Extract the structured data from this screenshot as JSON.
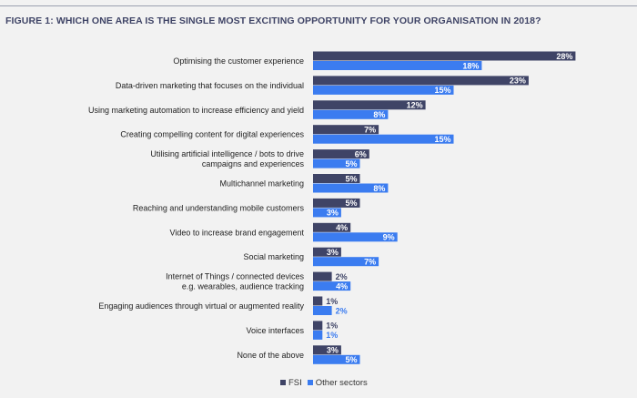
{
  "chart_data": {
    "type": "bar",
    "orientation": "horizontal",
    "title": "FIGURE 1: WHICH ONE AREA IS THE SINGLE MOST EXCITING OPPORTUNITY FOR YOUR ORGANISATION IN 2018?",
    "categories": [
      [
        "Optimising the customer experience"
      ],
      [
        "Data-driven marketing that focuses on the individual"
      ],
      [
        "Using marketing automation to increase efficiency and yield"
      ],
      [
        "Creating compelling content for digital experiences"
      ],
      [
        "Utilising artificial intelligence / bots to drive",
        "campaigns and experiences"
      ],
      [
        "Multichannel marketing"
      ],
      [
        "Reaching and understanding mobile customers"
      ],
      [
        "Video to increase brand engagement"
      ],
      [
        "Social marketing"
      ],
      [
        "Internet of Things / connected devices",
        "e.g. wearables, audience tracking"
      ],
      [
        "Engaging audiences through virtual or augmented reality"
      ],
      [
        "Voice interfaces"
      ],
      [
        "None of the above"
      ]
    ],
    "series": [
      {
        "name": "FSI",
        "color": "#3f4466",
        "values": [
          28,
          23,
          12,
          7,
          6,
          5,
          5,
          4,
          3,
          2,
          1,
          1,
          3
        ]
      },
      {
        "name": "Other sectors",
        "color": "#3b7cf0",
        "values": [
          18,
          15,
          8,
          15,
          5,
          8,
          3,
          9,
          7,
          4,
          2,
          1,
          5
        ]
      }
    ],
    "value_suffix": "%",
    "legend_position": "bottom",
    "grid": false
  }
}
